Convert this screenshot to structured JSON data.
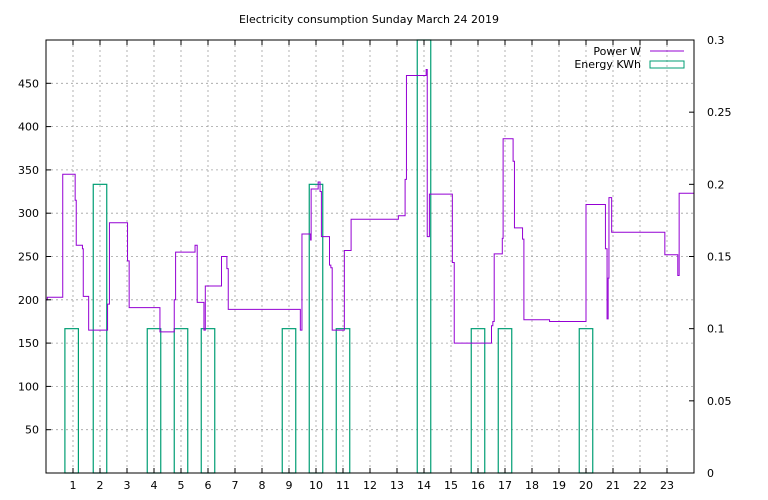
{
  "chart_data": {
    "type": "line",
    "title": "Electricity consumption Sunday March 24 2019",
    "x_ticks": [
      1,
      2,
      3,
      4,
      5,
      6,
      7,
      8,
      9,
      10,
      11,
      12,
      13,
      14,
      15,
      16,
      17,
      18,
      19,
      20,
      21,
      22,
      23
    ],
    "xlim": [
      0,
      24
    ],
    "y_left": {
      "ylim": [
        0,
        500
      ],
      "ticks": [
        50,
        100,
        150,
        200,
        250,
        300,
        350,
        400,
        450
      ]
    },
    "y_right": {
      "ylim": [
        0,
        0.3
      ],
      "ticks": [
        0,
        0.05,
        0.1,
        0.15,
        0.2,
        0.25,
        0.3
      ]
    },
    "grid": true,
    "legend_placement": "top-right",
    "series": [
      {
        "name": "Power W",
        "axis": "left",
        "color": "#9400d3",
        "style": "step",
        "points": [
          [
            0,
            200
          ],
          [
            0.05,
            203
          ],
          [
            0.6,
            203
          ],
          [
            0.62,
            345
          ],
          [
            1.05,
            345
          ],
          [
            1.08,
            315
          ],
          [
            1.12,
            263
          ],
          [
            1.3,
            263
          ],
          [
            1.35,
            259
          ],
          [
            1.38,
            204
          ],
          [
            1.55,
            204
          ],
          [
            1.58,
            165
          ],
          [
            2.25,
            165
          ],
          [
            2.28,
            195
          ],
          [
            2.35,
            289
          ],
          [
            3.0,
            289
          ],
          [
            3.02,
            245
          ],
          [
            3.08,
            191
          ],
          [
            4.2,
            191
          ],
          [
            4.22,
            163
          ],
          [
            4.7,
            163
          ],
          [
            4.75,
            200
          ],
          [
            4.8,
            255
          ],
          [
            5.5,
            255
          ],
          [
            5.52,
            263
          ],
          [
            5.6,
            197
          ],
          [
            5.8,
            197
          ],
          [
            5.85,
            165
          ],
          [
            5.9,
            216
          ],
          [
            6.45,
            216
          ],
          [
            6.5,
            250
          ],
          [
            6.65,
            250
          ],
          [
            6.7,
            236
          ],
          [
            6.75,
            189
          ],
          [
            9.4,
            189
          ],
          [
            9.42,
            165
          ],
          [
            9.48,
            276
          ],
          [
            9.78,
            276
          ],
          [
            9.8,
            269
          ],
          [
            9.82,
            328
          ],
          [
            10.05,
            328
          ],
          [
            10.08,
            336
          ],
          [
            10.15,
            325
          ],
          [
            10.2,
            273
          ],
          [
            10.45,
            273
          ],
          [
            10.5,
            240
          ],
          [
            10.55,
            237
          ],
          [
            10.6,
            165
          ],
          [
            11.0,
            165
          ],
          [
            11.05,
            257
          ],
          [
            11.25,
            257
          ],
          [
            11.3,
            293
          ],
          [
            13.0,
            293
          ],
          [
            13.05,
            297
          ],
          [
            13.28,
            297
          ],
          [
            13.3,
            339
          ],
          [
            13.35,
            459
          ],
          [
            14.0,
            459
          ],
          [
            14.08,
            466
          ],
          [
            14.12,
            273
          ],
          [
            14.2,
            322
          ],
          [
            15.0,
            322
          ],
          [
            15.05,
            243
          ],
          [
            15.12,
            150
          ],
          [
            16.45,
            150
          ],
          [
            16.5,
            170
          ],
          [
            16.55,
            175
          ],
          [
            16.6,
            253
          ],
          [
            16.85,
            253
          ],
          [
            16.9,
            271
          ],
          [
            16.93,
            386
          ],
          [
            17.25,
            386
          ],
          [
            17.3,
            360
          ],
          [
            17.35,
            283
          ],
          [
            17.6,
            283
          ],
          [
            17.65,
            270
          ],
          [
            17.7,
            177
          ],
          [
            18.6,
            177
          ],
          [
            18.65,
            175
          ],
          [
            19.95,
            175
          ],
          [
            20.0,
            310
          ],
          [
            20.7,
            310
          ],
          [
            20.72,
            259
          ],
          [
            20.78,
            178
          ],
          [
            20.82,
            225
          ],
          [
            20.85,
            318
          ],
          [
            20.9,
            318
          ],
          [
            20.95,
            278
          ],
          [
            22.9,
            278
          ],
          [
            22.92,
            252
          ],
          [
            23.35,
            252
          ],
          [
            23.4,
            228
          ],
          [
            23.45,
            323
          ],
          [
            24,
            323
          ]
        ]
      },
      {
        "name": "Energy KWh",
        "axis": "right",
        "color": "#009e73",
        "style": "bars",
        "bars": [
          [
            0.7,
            1.2,
            0.1
          ],
          [
            1.75,
            2.25,
            0.2
          ],
          [
            3.75,
            4.25,
            0.1
          ],
          [
            4.75,
            5.25,
            0.1
          ],
          [
            5.75,
            6.25,
            0.1
          ],
          [
            8.75,
            9.25,
            0.1
          ],
          [
            9.75,
            10.25,
            0.2
          ],
          [
            10.75,
            11.25,
            0.1
          ],
          [
            13.75,
            14.25,
            0.3
          ],
          [
            15.75,
            16.25,
            0.1
          ],
          [
            16.75,
            17.25,
            0.1
          ],
          [
            19.75,
            20.25,
            0.1
          ]
        ]
      }
    ]
  }
}
